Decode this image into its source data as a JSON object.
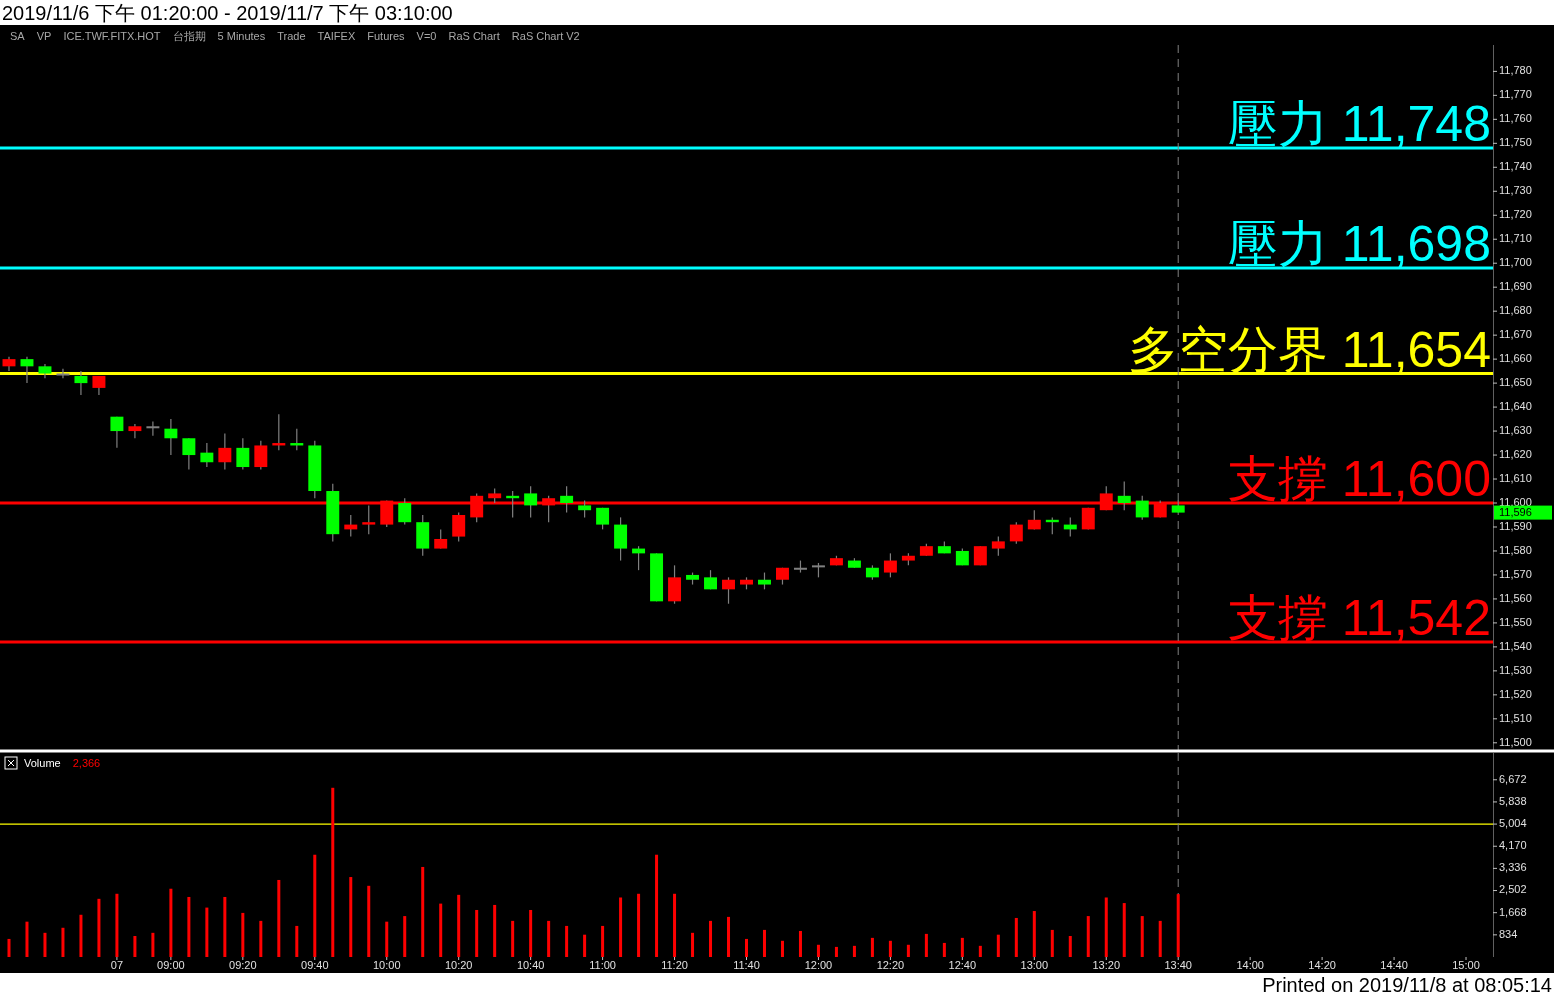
{
  "chart_data": [
    {
      "type": "candlestick",
      "title": "2019/11/6 下午 01:20:00 - 2019/11/7 下午 03:10:00",
      "tick_labels": "y",
      "categories": [
        null,
        null,
        null,
        null,
        null,
        null,
        "07",
        null,
        null,
        "09:00",
        null,
        null,
        null,
        "09:20",
        null,
        null,
        null,
        "09:40",
        null,
        null,
        null,
        "10:00",
        null,
        null,
        null,
        "10:20",
        null,
        null,
        null,
        "10:40",
        null,
        null,
        null,
        "11:00",
        null,
        null,
        null,
        "11:20",
        null,
        null,
        null,
        "11:40",
        null,
        null,
        null,
        "12:00",
        null,
        null,
        null,
        "12:20",
        null,
        null,
        null,
        "12:40",
        null,
        null,
        null,
        "13:00",
        null,
        null,
        null,
        "13:20",
        null,
        null,
        null,
        "13:40",
        null,
        null,
        null,
        "14:00",
        null,
        null,
        null,
        "14:20",
        null,
        null,
        null,
        "14:40",
        null,
        null,
        null,
        "15:00",
        null
      ],
      "ohlc": [
        [
          11657,
          11661,
          11655,
          11660
        ],
        [
          11660,
          11661,
          11650,
          11657
        ],
        [
          11657,
          11658,
          11652,
          11654
        ],
        [
          11654,
          11656,
          11652,
          11654
        ],
        [
          11653,
          11655,
          11645,
          11650
        ],
        [
          11648,
          11653,
          11645,
          11653
        ],
        [
          11636,
          11636,
          11623,
          11630
        ],
        [
          11630,
          11633,
          11627,
          11632
        ],
        [
          11632,
          11634,
          11628,
          11632
        ],
        [
          11631,
          11635,
          11620,
          11627
        ],
        [
          11627,
          11627,
          11614,
          11620
        ],
        [
          11621,
          11625,
          11615,
          11617
        ],
        [
          11617,
          11629,
          11614,
          11623
        ],
        [
          11623,
          11627,
          11614,
          11615
        ],
        [
          11615,
          11626,
          11614,
          11624
        ],
        [
          11624,
          11637,
          11622,
          11625
        ],
        [
          11625,
          11631,
          11622,
          11624
        ],
        [
          11624,
          11626,
          11602,
          11605
        ],
        [
          11605,
          11608,
          11584,
          11587
        ],
        [
          11589,
          11595,
          11586,
          11591
        ],
        [
          11591,
          11599,
          11587,
          11592
        ],
        [
          11591,
          11601,
          11590,
          11601
        ],
        [
          11600,
          11602,
          11591,
          11592
        ],
        [
          11592,
          11595,
          11578,
          11581
        ],
        [
          11581,
          11589,
          11581,
          11585
        ],
        [
          11586,
          11596,
          11584,
          11595
        ],
        [
          11594,
          11604,
          11592,
          11603
        ],
        [
          11602,
          11606,
          11600,
          11604
        ],
        [
          11603,
          11605,
          11594,
          11602
        ],
        [
          11604,
          11607,
          11594,
          11599
        ],
        [
          11599,
          11603,
          11592,
          11602
        ],
        [
          11603,
          11607,
          11596,
          11600
        ],
        [
          11599,
          11601,
          11594,
          11597
        ],
        [
          11598,
          11598,
          11589,
          11591
        ],
        [
          11591,
          11594,
          11576,
          11581
        ],
        [
          11581,
          11582,
          11572,
          11579
        ],
        [
          11579,
          11579,
          11559,
          11559
        ],
        [
          11559,
          11574,
          11558,
          11569
        ],
        [
          11570,
          11571,
          11566,
          11568
        ],
        [
          11569,
          11572,
          11564,
          11564
        ],
        [
          11564,
          11569,
          11558,
          11568
        ],
        [
          11566,
          11569,
          11564,
          11568
        ],
        [
          11568,
          11571,
          11564,
          11566
        ],
        [
          11568,
          11573,
          11566,
          11573
        ],
        [
          11573,
          11576,
          11571,
          11573
        ],
        [
          11574,
          11575,
          11569,
          11574
        ],
        [
          11574,
          11578,
          11574,
          11577
        ],
        [
          11576,
          11577,
          11573,
          11573
        ],
        [
          11573,
          11574,
          11568,
          11569
        ],
        [
          11571,
          11579,
          11569,
          11576
        ],
        [
          11576,
          11579,
          11574,
          11578
        ],
        [
          11578,
          11583,
          11578,
          11582
        ],
        [
          11582,
          11584,
          11579,
          11579
        ],
        [
          11580,
          11581,
          11574,
          11574
        ],
        [
          11574,
          11582,
          11574,
          11582
        ],
        [
          11581,
          11586,
          11578,
          11584
        ],
        [
          11584,
          11592,
          11583,
          11591
        ],
        [
          11589,
          11597,
          11589,
          11593
        ],
        [
          11593,
          11594,
          11587,
          11592
        ],
        [
          11591,
          11594,
          11586,
          11589
        ],
        [
          11589,
          11598,
          11589,
          11598
        ],
        [
          11597,
          11607,
          11597,
          11604
        ],
        [
          11603,
          11609,
          11597,
          11600
        ],
        [
          11601,
          11603,
          11593,
          11594
        ],
        [
          11594,
          11601,
          11594,
          11600
        ],
        [
          11599,
          11601,
          11596,
          11596
        ],
        null,
        null,
        null,
        null,
        null,
        null,
        null,
        null,
        null,
        null,
        null,
        null,
        null,
        null,
        null,
        null,
        null
      ],
      "colors": [
        "#ff0000",
        "#00ff00",
        "#00ff00",
        "#808080",
        "#00ff00",
        "#ff0000",
        "#00ff00",
        "#ff0000",
        "#808080",
        "#00ff00",
        "#00ff00",
        "#00ff00",
        "#ff0000",
        "#00ff00",
        "#ff0000",
        "#ff0000",
        "#00ff00",
        "#00ff00",
        "#00ff00",
        "#ff0000",
        "#ff0000",
        "#ff0000",
        "#00ff00",
        "#00ff00",
        "#ff0000",
        "#ff0000",
        "#ff0000",
        "#ff0000",
        "#00ff00",
        "#00ff00",
        "#ff0000",
        "#00ff00",
        "#00ff00",
        "#00ff00",
        "#00ff00",
        "#00ff00",
        "#00ff00",
        "#ff0000",
        "#00ff00",
        "#00ff00",
        "#ff0000",
        "#ff0000",
        "#00ff00",
        "#ff0000",
        "#808080",
        "#808080",
        "#ff0000",
        "#00ff00",
        "#00ff00",
        "#ff0000",
        "#ff0000",
        "#ff0000",
        "#00ff00",
        "#00ff00",
        "#ff0000",
        "#ff0000",
        "#ff0000",
        "#ff0000",
        "#00ff00",
        "#00ff00",
        "#ff0000",
        "#ff0000",
        "#00ff00",
        "#00ff00",
        "#ff0000",
        "#00ff00",
        null,
        null,
        null,
        null,
        null,
        null,
        null,
        null,
        null,
        null,
        null,
        null,
        null,
        null,
        null,
        null,
        null
      ],
      "ylim": [
        11497,
        11791
      ],
      "yticks": [
        {
          "value": 11500,
          "label": "11,500"
        },
        {
          "value": 11510,
          "label": "11,510"
        },
        {
          "value": 11520,
          "label": "11,520"
        },
        {
          "value": 11530,
          "label": "11,530"
        },
        {
          "value": 11540,
          "label": "11,540"
        },
        {
          "value": 11550,
          "label": "11,550"
        },
        {
          "value": 11560,
          "label": "11,560"
        },
        {
          "value": 11570,
          "label": "11,570"
        },
        {
          "value": 11580,
          "label": "11,580"
        },
        {
          "value": 11590,
          "label": "11,590"
        },
        {
          "value": 11600,
          "label": "11,600"
        },
        {
          "value": 11610,
          "label": "11,610"
        },
        {
          "value": 11620,
          "label": "11,620"
        },
        {
          "value": 11630,
          "label": "11,630"
        },
        {
          "value": 11640,
          "label": "11,640"
        },
        {
          "value": 11650,
          "label": "11,650"
        },
        {
          "value": 11660,
          "label": "11,660"
        },
        {
          "value": 11670,
          "label": "11,670"
        },
        {
          "value": 11680,
          "label": "11,680"
        },
        {
          "value": 11690,
          "label": "11,690"
        },
        {
          "value": 11700,
          "label": "11,700"
        },
        {
          "value": 11710,
          "label": "11,710"
        },
        {
          "value": 11720,
          "label": "11,720"
        },
        {
          "value": 11730,
          "label": "11,730"
        },
        {
          "value": 11740,
          "label": "11,740"
        },
        {
          "value": 11750,
          "label": "11,750"
        },
        {
          "value": 11760,
          "label": "11,760"
        },
        {
          "value": 11770,
          "label": "11,770"
        },
        {
          "value": 11780,
          "label": "11,780"
        }
      ],
      "ref_lines": [
        {
          "axis": "y",
          "value": 11748,
          "label": "壓力 11,748",
          "color": "#00ffff"
        },
        {
          "axis": "y",
          "value": 11698,
          "label": "壓力 11,698",
          "color": "#00ffff"
        },
        {
          "axis": "y",
          "value": 11654,
          "label": "多空分界 11,654",
          "color": "#ffff00"
        },
        {
          "axis": "y",
          "value": 11600,
          "label": "支撐 11,600",
          "color": "#ff0000"
        },
        {
          "axis": "y",
          "value": 11542,
          "label": "支撐 11,542",
          "color": "#ff0000"
        },
        {
          "axis": "x",
          "value": "13:40",
          "color": "#808080",
          "line_style": "dashed"
        }
      ],
      "annotations": [
        "SA",
        "VP",
        "ICE.TWF.FITX.HOT",
        "台指期",
        "5 Minutes",
        "Trade",
        "TAIFEX",
        "Futures",
        "V=0",
        "RaS Chart",
        "RaS Chart V2",
        "11,596"
      ]
    },
    {
      "type": "bar",
      "title": "Volume",
      "categories": [
        null,
        null,
        null,
        null,
        null,
        null,
        "07",
        null,
        null,
        "09:00",
        null,
        null,
        null,
        "09:20",
        null,
        null,
        null,
        "09:40",
        null,
        null,
        null,
        "10:00",
        null,
        null,
        null,
        "10:20",
        null,
        null,
        null,
        "10:40",
        null,
        null,
        null,
        "11:00",
        null,
        null,
        null,
        "11:20",
        null,
        null,
        null,
        "11:40",
        null,
        null,
        null,
        "12:00",
        null,
        null,
        null,
        "12:20",
        null,
        null,
        null,
        "12:40",
        null,
        null,
        null,
        "13:00",
        null,
        null,
        null,
        "13:20",
        null,
        null,
        null,
        "13:40",
        null,
        null,
        null,
        "14:00",
        null,
        null,
        null,
        "14:20",
        null,
        null,
        null,
        "14:40",
        null,
        null,
        null,
        "15:00",
        null
      ],
      "values": [
        680,
        1330,
        910,
        1100,
        1590,
        2190,
        2380,
        790,
        910,
        2570,
        2260,
        1860,
        2260,
        1660,
        1360,
        2900,
        1170,
        3850,
        6370,
        3010,
        2680,
        1330,
        1540,
        3390,
        2010,
        2340,
        1770,
        1960,
        1360,
        1770,
        1360,
        1170,
        840,
        1170,
        2240,
        2380,
        3850,
        2380,
        910,
        1360,
        1510,
        680,
        1020,
        610,
        980,
        460,
        380,
        420,
        720,
        610,
        460,
        870,
        530,
        720,
        420,
        840,
        1470,
        1730,
        1020,
        790,
        1540,
        2240,
        2030,
        1540,
        1360,
        2366,
        null,
        null,
        null,
        null,
        null,
        null,
        null,
        null,
        null,
        null,
        null,
        null,
        null,
        null,
        null,
        null,
        null
      ],
      "color": "#ff0000",
      "ylim": [
        0,
        7680
      ],
      "yticks": [
        834,
        {
          "value": 1668,
          "label": "1,668"
        },
        {
          "value": 2502,
          "label": "2,502"
        },
        {
          "value": 3336,
          "label": "3,336"
        },
        {
          "value": 4170,
          "label": "4,170"
        },
        {
          "value": 5004,
          "label": "5,004"
        },
        {
          "value": 5838,
          "label": "5,838"
        },
        {
          "value": 6672,
          "label": "6,672"
        }
      ],
      "ref_lines": [
        {
          "axis": "y",
          "value": 5004,
          "color": "#ffff00"
        },
        {
          "axis": "x",
          "value": "13:40",
          "color": "#808080",
          "line_style": "dashed"
        }
      ],
      "annotations": [
        "2,366",
        "Printed on 2019/11/8 at 08:05:14"
      ]
    }
  ]
}
